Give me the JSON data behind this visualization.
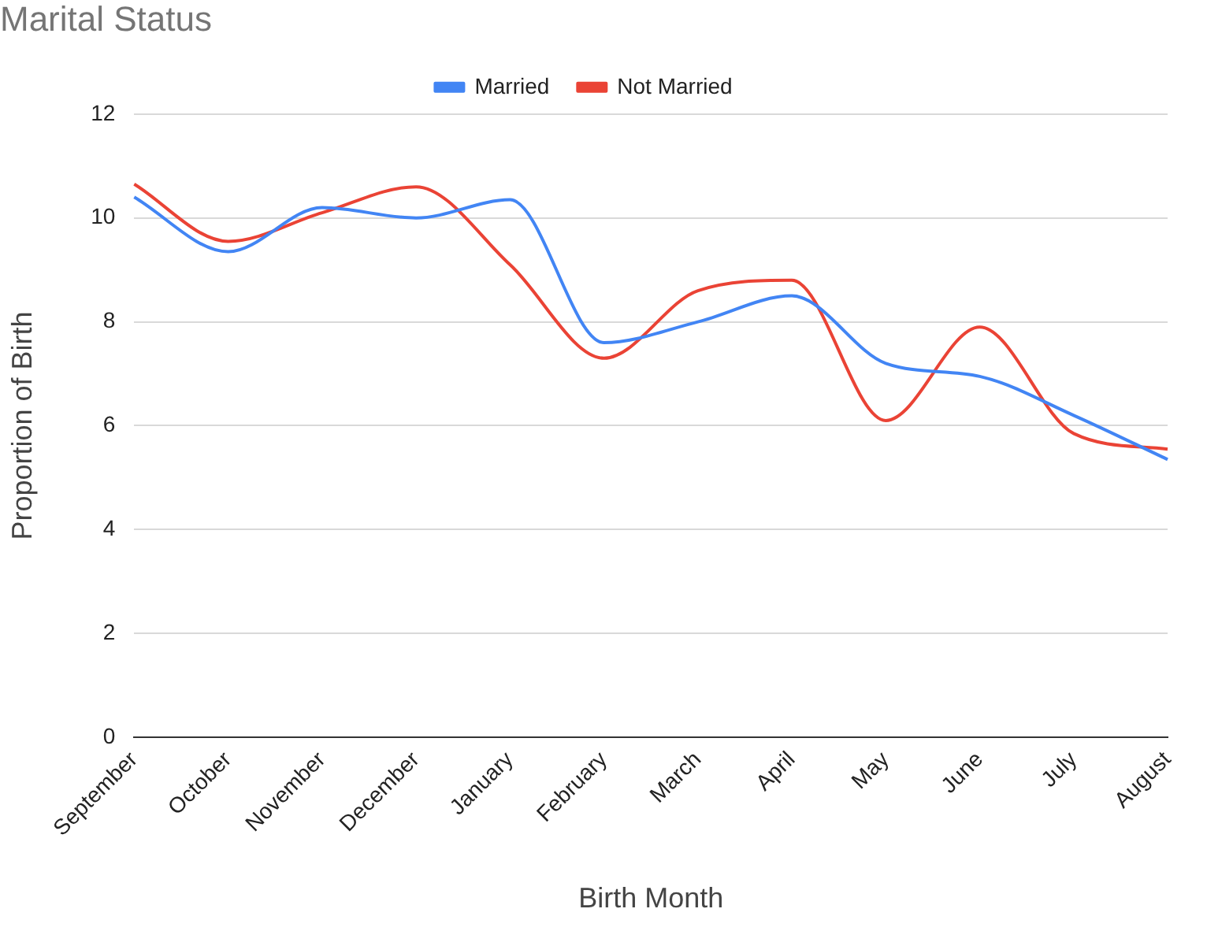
{
  "chart_data": {
    "type": "line",
    "title": "Marital Status",
    "xlabel": "Birth Month",
    "ylabel": "Proportion of Birth",
    "categories": [
      "September",
      "October",
      "November",
      "December",
      "January",
      "February",
      "March",
      "April",
      "May",
      "June",
      "July",
      "August"
    ],
    "series": [
      {
        "name": "Married",
        "color": "#4285f4",
        "values": [
          10.4,
          9.35,
          10.2,
          10.0,
          10.35,
          7.6,
          8.0,
          8.5,
          7.2,
          6.95,
          6.2,
          5.35
        ]
      },
      {
        "name": "Not Married",
        "color": "#ea4335",
        "values": [
          10.65,
          9.55,
          10.1,
          10.6,
          9.1,
          7.3,
          8.6,
          8.8,
          6.1,
          7.9,
          5.85,
          5.55
        ]
      }
    ],
    "ylim": [
      0,
      12
    ],
    "yticks": [
      0,
      2,
      4,
      6,
      8,
      10,
      12
    ],
    "grid": "y",
    "legend": "top",
    "marker": "none"
  }
}
